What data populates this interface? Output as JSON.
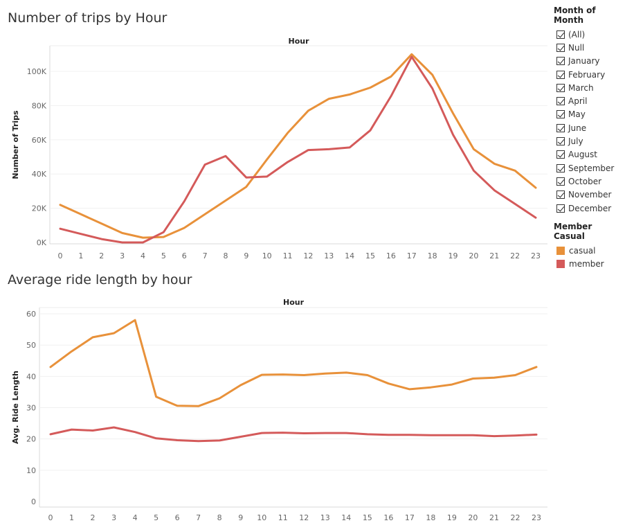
{
  "top_title": "Number of trips by Hour",
  "bottom_title": "Average ride length by hour",
  "legend": {
    "filter_title": "Month of Month",
    "filter_items": [
      "(All)",
      "Null",
      "January",
      "February",
      "March",
      "April",
      "May",
      "June",
      "July",
      "August",
      "September",
      "October",
      "November",
      "December"
    ],
    "color_title": "Member Casual",
    "color_items": [
      {
        "label": "casual",
        "color": "#E8913A"
      },
      {
        "label": "member",
        "color": "#D45A5A"
      }
    ]
  },
  "chart_data": [
    {
      "type": "line",
      "title": "Number of trips by Hour",
      "xlabel": "Hour",
      "ylabel": "Number of Trips",
      "x": [
        0,
        1,
        2,
        3,
        4,
        5,
        6,
        7,
        8,
        9,
        10,
        11,
        12,
        13,
        14,
        15,
        16,
        17,
        18,
        19,
        20,
        21,
        22,
        23
      ],
      "ylim": [
        0,
        115000
      ],
      "yticks": [
        0,
        20000,
        40000,
        60000,
        80000,
        100000
      ],
      "ytick_labels": [
        "0K",
        "20K",
        "40K",
        "60K",
        "80K",
        "100K"
      ],
      "series": [
        {
          "name": "casual",
          "color": "#E8913A",
          "values": [
            22000,
            16500,
            11000,
            5500,
            2800,
            3200,
            8500,
            16500,
            24500,
            32500,
            48500,
            64000,
            77000,
            84000,
            86500,
            90500,
            97000,
            110000,
            98000,
            75500,
            54500,
            46000,
            42000,
            32000
          ]
        },
        {
          "name": "member",
          "color": "#D45A5A",
          "values": [
            8000,
            5000,
            2000,
            0,
            0,
            6000,
            24000,
            45500,
            50500,
            38000,
            38500,
            47000,
            54000,
            54500,
            55500,
            65500,
            85500,
            108500,
            90000,
            63000,
            42000,
            30500,
            22500,
            14500
          ]
        }
      ]
    },
    {
      "type": "line",
      "title": "Average ride length by hour",
      "xlabel": "Hour",
      "ylabel": "Avg. Ride Length",
      "x": [
        0,
        1,
        2,
        3,
        4,
        5,
        6,
        7,
        8,
        9,
        10,
        11,
        12,
        13,
        14,
        15,
        16,
        17,
        18,
        19,
        20,
        21,
        22,
        23
      ],
      "ylim": [
        0,
        62
      ],
      "yticks": [
        0,
        10,
        20,
        30,
        40,
        50,
        60
      ],
      "ytick_labels": [
        "0",
        "10",
        "20",
        "30",
        "40",
        "50",
        "60"
      ],
      "series": [
        {
          "name": "casual",
          "color": "#E8913A",
          "values": [
            43,
            48,
            52.5,
            53.8,
            58,
            33.5,
            30.6,
            30.5,
            33,
            37.2,
            40.5,
            40.6,
            40.4,
            40.9,
            41.2,
            40.4,
            37.7,
            35.9,
            36.5,
            37.4,
            39.3,
            39.6,
            40.4,
            43
          ]
        },
        {
          "name": "member",
          "color": "#D45A5A",
          "values": [
            21.5,
            23,
            22.7,
            23.7,
            22.2,
            20.2,
            19.6,
            19.3,
            19.5,
            20.7,
            21.9,
            22,
            21.8,
            21.9,
            21.9,
            21.5,
            21.3,
            21.3,
            21.2,
            21.2,
            21.2,
            20.9,
            21.1,
            21.4
          ]
        }
      ]
    }
  ]
}
